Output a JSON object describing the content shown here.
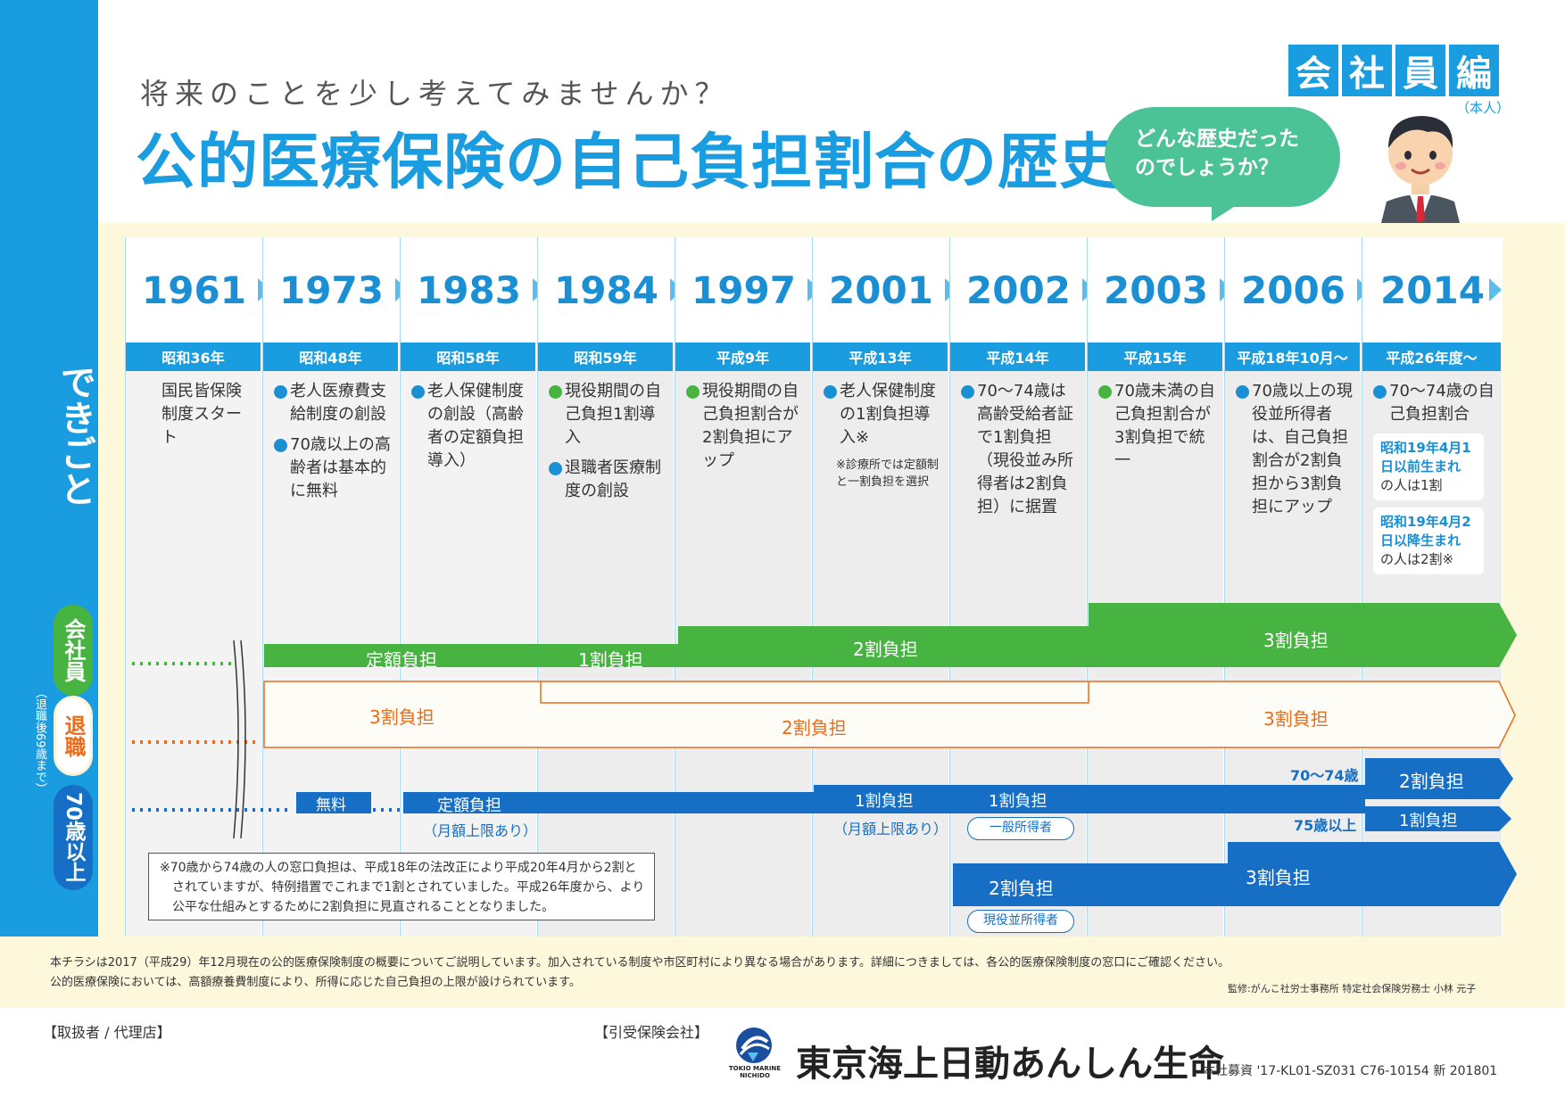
{
  "header": {
    "subtitle": "将来のことを少し考えてみませんか？",
    "title": "公的医療保険の自己負担割合の歴史",
    "bubble_line1": "どんな歴史だった",
    "bubble_line2": "のでしょうか？",
    "edition_chars": [
      "会",
      "社",
      "員",
      "編"
    ],
    "edition_sub": "（本人）"
  },
  "side": {
    "dekigoto": "できごと",
    "kaishain": "会社員",
    "taishoku": "退職",
    "taishoku_note": "（退職後69歳まで）",
    "over70": "70歳以上"
  },
  "columns": [
    {
      "year": "1961",
      "era": "昭和36年"
    },
    {
      "year": "1973",
      "era": "昭和48年"
    },
    {
      "year": "1983",
      "era": "昭和58年"
    },
    {
      "year": "1984",
      "era": "昭和59年"
    },
    {
      "year": "1997",
      "era": "平成9年"
    },
    {
      "year": "2001",
      "era": "平成13年"
    },
    {
      "year": "2002",
      "era": "平成14年"
    },
    {
      "year": "2003",
      "era": "平成15年"
    },
    {
      "year": "2006",
      "era": "平成18年10月～"
    },
    {
      "year": "2014",
      "era": "平成26年度～"
    }
  ],
  "events": {
    "c1961": "国民皆保険制度スタート",
    "c1973a": "老人医療費支給制度の創設",
    "c1973b": "70歳以上の高齢者は基本的に無料",
    "c1983": "老人保健制度の創設（高齢者の定額負担導入）",
    "c1984a": "現役期間の自己負担1割導入",
    "c1984b": "退職者医療制度の創設",
    "c1997": "現役期間の自己負担割合が2割負担にアップ",
    "c2001": "老人保健制度の1割負担導入※",
    "c2001_note": "※診療所では定額制と一割負担を選択",
    "c2002": "70～74歳は高齢受給者証で1割負担（現役並み所得者は2割負担）に据置",
    "c2003": "70歳未満の自己負担割合が3割負担で統一",
    "c2006": "70歳以上の現役並所得者は、自己負担割合が2割負担から3割負担にアップ",
    "c2014": "70～74歳の自己負担割合",
    "c2014_box1_hl": "昭和19年4月1日以前生まれ",
    "c2014_box1_rest": "の人は1割",
    "c2014_box2_hl": "昭和19年4月2日以降生まれ",
    "c2014_box2_rest": "の人は2割※"
  },
  "bars": {
    "g_teigaku": "定額負担",
    "g_1wari": "1割負担",
    "g_2wari": "2割負担",
    "g_3wari": "3割負担",
    "o_3wari_a": "3割負担",
    "o_2wari": "2割負担",
    "o_3wari_b": "3割負担",
    "b_muryo": "無料",
    "b_teigaku": "定額負担",
    "b_teigaku_sub": "（月額上限あり）",
    "b_1wari_2001": "1割負担",
    "b_1wari_2001_sub": "（月額上限あり）",
    "b_1wari_2002": "1割負担",
    "b_ippan": "一般所得者",
    "b_2wari": "2割負担",
    "b_genekinami": "現役並所得者",
    "b_3wari": "3割負担",
    "b_7074": "70～74歳",
    "b_7074_val": "2割負担",
    "b_75": "75歳以上",
    "b_75_val": "1割負担"
  },
  "note": {
    "line1": "※70歳から74歳の人の窓口負担は、平成18年の法改正により平成20年4月から2割と",
    "line2": "されていますが、特例措置でこれまで1割とされていました。平成26年度から、より",
    "line3": "公平な仕組みとするために2割負担に見直されることとなりました。"
  },
  "footer": {
    "line1": "本チラシは2017（平成29）年12月現在の公的医療保険制度の概要についてご説明しています。加入されている制度や市区町村により異なる場合があります。詳細につきましては、各公的医療保険制度の窓口にご確認ください。",
    "line2": "公的医療保険においては、高額療養費制度により、所得に応じた自己負担の上限が設けられています。",
    "supervisor": "監修:がんこ社労士事務所 特定社会保険労務士 小林 元子",
    "agent": "【取扱者 / 代理店】",
    "insurer": "【引受保険会社】",
    "company": "東京海上日動あんしん生命",
    "logo_text1": "TOKIO MARINE",
    "logo_text2": "NICHIDO",
    "doc_code": "本社募資 '17-KL01-SZ031 C76-10154 新 201801"
  },
  "colors": {
    "accent": "#1a9ce0",
    "green": "#47b341",
    "orange": "#ea6d1b",
    "navy": "#166fc4",
    "teal": "#4cc297"
  }
}
